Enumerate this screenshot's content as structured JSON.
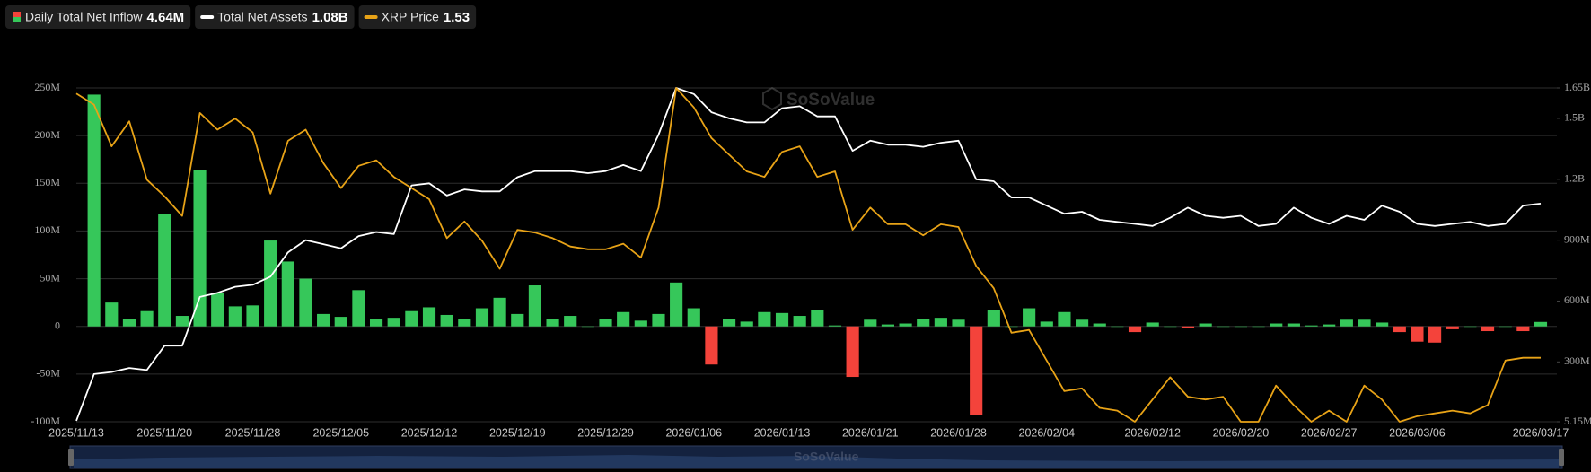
{
  "chart_data": {
    "type": "bar",
    "watermark": "SoSoValue",
    "categories": [
      "2025/11/13",
      null,
      null,
      null,
      null,
      "2025/11/20",
      null,
      null,
      null,
      null,
      "2025/11/28",
      null,
      null,
      null,
      null,
      "2025/12/05",
      null,
      null,
      null,
      null,
      "2025/12/12",
      null,
      null,
      null,
      null,
      "2025/12/19",
      null,
      null,
      null,
      null,
      "2025/12/29",
      null,
      null,
      null,
      null,
      "2026/01/06",
      null,
      null,
      null,
      null,
      "2026/01/13",
      null,
      null,
      null,
      null,
      "2026/01/21",
      null,
      null,
      null,
      null,
      "2026/01/28",
      null,
      null,
      null,
      null,
      "2026/02/04",
      null,
      null,
      null,
      null,
      null,
      "2026/02/12",
      null,
      null,
      null,
      null,
      "2026/02/20",
      null,
      null,
      null,
      null,
      "2026/02/27",
      null,
      null,
      null,
      null,
      "2026/03/06",
      null,
      null,
      null,
      null,
      null,
      null,
      "2026/03/17"
    ],
    "series": [
      {
        "name": "Daily Total Net Inflow",
        "legend_value": "4.64M",
        "type": "bar",
        "axis": "y",
        "color": "#36c75a",
        "negative_color": "#f4433b",
        "values": [
          null,
          243,
          25,
          8,
          16,
          118,
          11,
          164,
          35,
          21,
          22,
          90,
          68,
          50,
          13,
          10,
          38,
          8,
          9,
          16,
          20,
          12,
          8,
          19,
          30,
          13,
          43,
          8,
          11,
          0,
          8,
          15,
          6,
          13,
          46,
          19,
          -40,
          8,
          5,
          15,
          14,
          11,
          17,
          1,
          -53,
          7,
          2,
          3,
          8,
          9,
          7,
          -93,
          17,
          0,
          19,
          5,
          15,
          7,
          3,
          0,
          -6,
          4,
          0,
          -2,
          3,
          0,
          0,
          0,
          3,
          3,
          1,
          2,
          7,
          7,
          4,
          -6,
          -16,
          -17,
          -3,
          0,
          -5,
          0,
          -5,
          4.64
        ]
      },
      {
        "name": "Total Net Assets",
        "legend_value": "1.08B",
        "type": "line",
        "axis": "y2",
        "color": "#ffffff",
        "values": [
          0.01,
          0.24,
          0.25,
          0.27,
          0.26,
          0.38,
          0.38,
          0.62,
          0.64,
          0.67,
          0.68,
          0.72,
          0.84,
          0.9,
          0.88,
          0.86,
          0.92,
          0.94,
          0.93,
          1.17,
          1.18,
          1.12,
          1.15,
          1.14,
          1.14,
          1.21,
          1.24,
          1.24,
          1.24,
          1.23,
          1.24,
          1.27,
          1.24,
          1.42,
          1.65,
          1.62,
          1.53,
          1.5,
          1.48,
          1.48,
          1.55,
          1.56,
          1.51,
          1.51,
          1.34,
          1.39,
          1.37,
          1.37,
          1.36,
          1.38,
          1.39,
          1.2,
          1.19,
          1.11,
          1.11,
          1.07,
          1.03,
          1.04,
          1.0,
          0.99,
          0.98,
          0.97,
          1.01,
          1.06,
          1.02,
          1.01,
          1.02,
          0.97,
          0.98,
          1.06,
          1.01,
          0.98,
          1.02,
          1.0,
          1.07,
          1.04,
          0.98,
          0.97,
          0.98,
          0.99,
          0.97,
          0.98,
          1.07,
          1.08
        ]
      },
      {
        "name": "XRP Price",
        "legend_value": "1.53",
        "type": "line",
        "axis": "y3",
        "color": "#e8a317",
        "values": [
          2.48,
          2.44,
          2.29,
          2.38,
          2.17,
          2.11,
          2.04,
          2.41,
          2.35,
          2.39,
          2.34,
          2.12,
          2.31,
          2.35,
          2.23,
          2.14,
          2.22,
          2.24,
          2.18,
          2.14,
          2.1,
          1.96,
          2.02,
          1.95,
          1.85,
          1.99,
          1.98,
          1.96,
          1.93,
          1.92,
          1.92,
          1.94,
          1.89,
          2.07,
          2.5,
          2.43,
          2.32,
          2.26,
          2.2,
          2.18,
          2.27,
          2.29,
          2.18,
          2.2,
          1.99,
          2.07,
          2.01,
          2.01,
          1.97,
          2.01,
          2.0,
          1.86,
          1.78,
          1.62,
          1.63,
          1.52,
          1.41,
          1.42,
          1.35,
          1.34,
          1.3,
          1.38,
          1.46,
          1.39,
          1.38,
          1.39,
          1.3,
          1.3,
          1.43,
          1.36,
          1.3,
          1.34,
          1.3,
          1.43,
          1.38,
          1.3,
          1.32,
          1.33,
          1.34,
          1.33,
          1.36,
          1.52,
          1.53,
          1.53
        ]
      }
    ],
    "ylim": [
      -100,
      250
    ],
    "yticks": [
      {
        "value": -100,
        "label": "-100M"
      },
      {
        "value": -50,
        "label": "-50M"
      },
      0,
      {
        "value": 50,
        "label": "50M"
      },
      {
        "value": 100,
        "label": "100M"
      },
      {
        "value": 150,
        "label": "150M"
      },
      {
        "value": 200,
        "label": "200M"
      },
      {
        "value": 250,
        "label": "250M"
      }
    ],
    "y2lim": [
      0.00515,
      1.65
    ],
    "y2ticks": [
      {
        "value": 0.00515,
        "label": "5.15M"
      },
      {
        "value": 0.3,
        "label": "300M"
      },
      {
        "value": 0.6,
        "label": "600M"
      },
      {
        "value": 0.9,
        "label": "900M"
      },
      {
        "value": 1.2,
        "label": "1.2B"
      },
      {
        "value": 1.5,
        "label": "1.5B"
      },
      {
        "value": 1.65,
        "label": "1.65B"
      }
    ],
    "y3lim": [
      1.3,
      2.5
    ],
    "grid": true
  }
}
